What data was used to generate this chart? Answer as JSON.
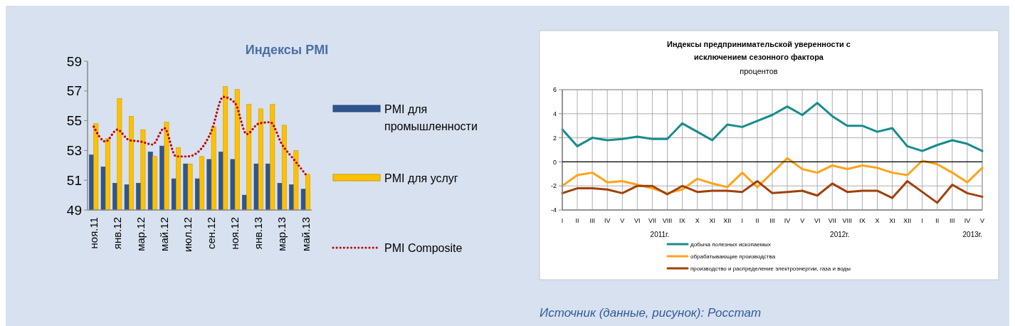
{
  "chart_data": [
    {
      "type": "bar",
      "title": "Индексы PMI",
      "categories": [
        "ноя.11",
        null,
        "янв.12",
        null,
        "мар.12",
        null,
        "май.12",
        null,
        "июл.12",
        null,
        "сен.12",
        null,
        "ноя.12",
        null,
        "янв.13",
        null,
        "мар.13",
        null,
        "май.13"
      ],
      "series": [
        {
          "name": "PMI для промышленности",
          "color": "#2e558f",
          "values": [
            52.7,
            51.9,
            50.8,
            50.7,
            50.8,
            52.9,
            53.3,
            51.1,
            52.1,
            51.1,
            52.4,
            52.9,
            52.4,
            50.0,
            52.1,
            52.1,
            50.8,
            50.7,
            50.4
          ]
        },
        {
          "name": "PMI для услуг",
          "color": "#ffc000",
          "values": [
            54.8,
            53.8,
            56.5,
            55.3,
            54.4,
            52.6,
            54.9,
            53.2,
            52.1,
            52.6,
            54.6,
            57.3,
            57.1,
            56.1,
            55.8,
            56.1,
            54.7,
            53.0,
            51.4
          ]
        },
        {
          "name": "PMI Composite",
          "type": "line",
          "color": "#c00000",
          "line_style": "dotted",
          "values": [
            54.6,
            53.6,
            54.4,
            53.7,
            53.6,
            53.4,
            54.5,
            52.6,
            52.6,
            53.0,
            54.3,
            56.6,
            56.2,
            54.1,
            54.8,
            54.9,
            53.4,
            52.4,
            51.4
          ]
        }
      ],
      "ylim": [
        49,
        59
      ],
      "yticks": [
        49,
        51,
        53,
        55,
        57,
        59
      ],
      "grid": false,
      "legend": "right",
      "marker": "none"
    },
    {
      "type": "line",
      "title": "Индексы предпринимательской уверенности с исключением сезонного фактора",
      "subtitle": "процентов",
      "categories": [
        "I",
        "II",
        "III",
        "IV",
        "V",
        "VI",
        "VII",
        "VIII",
        "IX",
        "X",
        "XI",
        "XII",
        "I",
        "II",
        "III",
        "IV",
        "V",
        "VI",
        "VII",
        "VIII",
        "IX",
        "X",
        "XI",
        "XII",
        "I",
        "II",
        "III",
        "IV",
        "V"
      ],
      "series": [
        {
          "name": "добыча полезных ископаемых",
          "color": "#178c8c",
          "values": [
            2.7,
            1.3,
            2.0,
            1.8,
            1.9,
            2.1,
            1.9,
            1.9,
            3.2,
            2.5,
            1.8,
            3.1,
            2.9,
            3.4,
            3.9,
            4.6,
            3.9,
            4.9,
            3.8,
            3.0,
            3.0,
            2.5,
            2.8,
            1.3,
            0.9,
            1.4,
            1.8,
            1.5,
            0.9
          ]
        },
        {
          "name": "обрабатывающие производства",
          "color": "#ffa31a",
          "values": [
            -2.0,
            -1.1,
            -0.9,
            -1.7,
            -1.6,
            -1.9,
            -2.2,
            -2.6,
            -2.3,
            -1.4,
            -1.8,
            -2.1,
            -0.9,
            -2.1,
            -0.9,
            0.3,
            -0.6,
            -0.9,
            -0.3,
            -0.6,
            -0.3,
            -0.5,
            -0.9,
            -1.1,
            0.1,
            -0.2,
            -0.9,
            -1.7,
            -0.5
          ]
        },
        {
          "name": "производство и распределение электроэнергии, газа и воды",
          "color": "#a0400a",
          "values": [
            -2.6,
            -2.2,
            -2.2,
            -2.3,
            -2.6,
            -2.0,
            -2.0,
            -2.7,
            -2.0,
            -2.5,
            -2.4,
            -2.4,
            -2.5,
            -1.6,
            -2.6,
            -2.5,
            -2.4,
            -2.8,
            -1.8,
            -2.5,
            -2.4,
            -2.4,
            -3.0,
            -1.6,
            -2.5,
            -3.4,
            -1.9,
            -2.6,
            -2.9
          ]
        }
      ],
      "ylim": [
        -4,
        6
      ],
      "yticks": [
        -4,
        -2,
        0,
        2,
        4,
        6
      ],
      "grid": true,
      "legend": "bottom",
      "marker": "none",
      "line_style": "solid",
      "annotations": [
        "2011г.",
        "2012г.",
        "2013г.",
        "Источник (данные, рисунок): Росстат"
      ]
    }
  ]
}
